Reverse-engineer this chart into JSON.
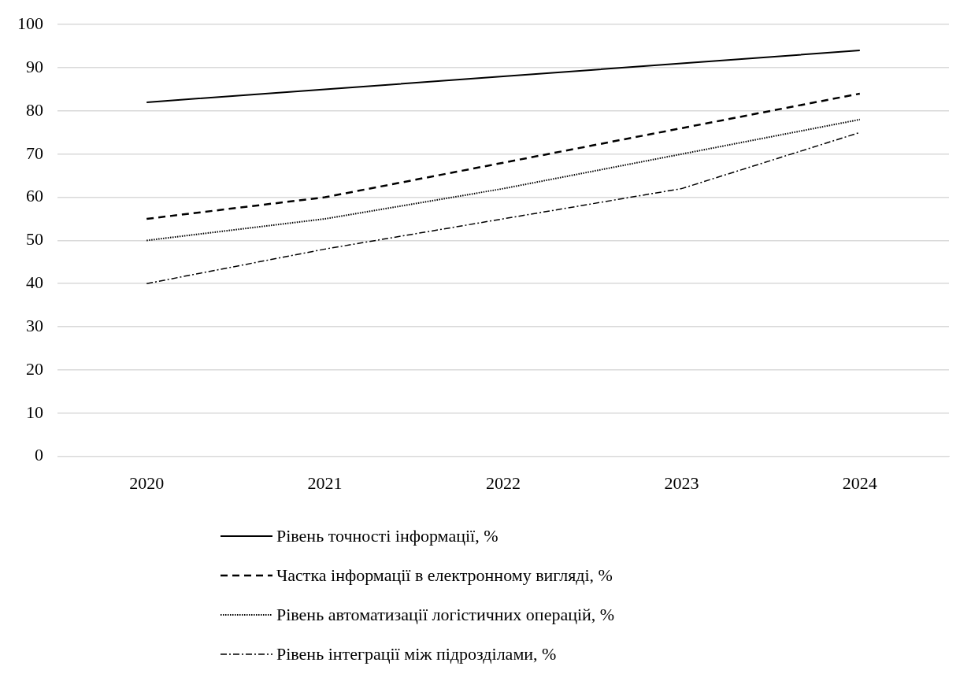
{
  "chart_data": {
    "type": "line",
    "categories": [
      "2020",
      "2021",
      "2022",
      "2023",
      "2024"
    ],
    "series": [
      {
        "name": "Рівень точності інформації, %",
        "color": "#000000",
        "line_style": "solid",
        "values": [
          82,
          85,
          88,
          91,
          94
        ]
      },
      {
        "name": "Частка інформації в електронному вигляді, %",
        "color": "#000000",
        "line_style": "dashed",
        "values": [
          55,
          60,
          68,
          76,
          84
        ]
      },
      {
        "name": "Рівень автоматизації логістичних операцій, %",
        "color": "#000000",
        "line_style": "dotted",
        "values": [
          50,
          55,
          62,
          70,
          78
        ]
      },
      {
        "name": "Рівень інтеграції між підрозділами, %",
        "color": "#000000",
        "line_style": "dashdot",
        "values": [
          40,
          48,
          55,
          62,
          75
        ]
      }
    ],
    "ylim": [
      0,
      100
    ],
    "yticks": [
      0,
      10,
      20,
      30,
      40,
      50,
      60,
      70,
      80,
      90,
      100
    ],
    "grid": "y",
    "legend": "bottom",
    "marker": "none"
  }
}
